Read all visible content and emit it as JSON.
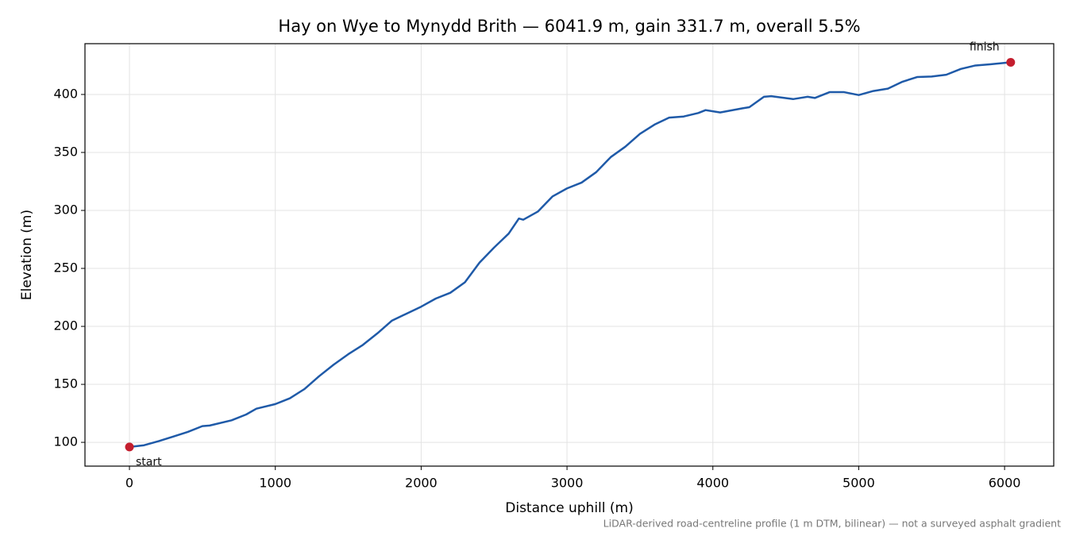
{
  "chart_data": {
    "type": "line",
    "title": "Hay on Wye to Mynydd Brith — 6041.9 m, gain 331.7 m, overall 5.5%",
    "xlabel": "Distance uphill (m)",
    "ylabel": "Elevation (m)",
    "note": "LiDAR-derived road-centreline profile (1 m DTM, bilinear) — not a surveyed asphalt gradient",
    "annotations": [
      "start",
      "finish"
    ],
    "color": "#1f5aa8",
    "marker_color": "#c41e2e",
    "grid": true,
    "x": [
      0,
      100,
      200,
      300,
      400,
      500,
      550,
      700,
      800,
      870,
      1000,
      1100,
      1200,
      1300,
      1400,
      1500,
      1600,
      1700,
      1800,
      1900,
      2000,
      2100,
      2200,
      2300,
      2400,
      2500,
      2600,
      2670,
      2700,
      2800,
      2900,
      3000,
      3100,
      3200,
      3300,
      3400,
      3500,
      3600,
      3700,
      3800,
      3900,
      3950,
      4050,
      4200,
      4250,
      4350,
      4400,
      4550,
      4650,
      4700,
      4800,
      4900,
      5000,
      5100,
      5200,
      5300,
      5400,
      5500,
      5600,
      5700,
      5800,
      5900,
      6041.9
    ],
    "values": [
      96,
      97.5,
      101,
      105,
      109,
      114,
      114.5,
      119,
      124,
      129,
      133,
      138,
      146,
      157,
      167,
      176,
      184,
      194,
      205,
      211,
      217,
      224,
      229,
      238,
      255,
      268,
      280,
      293,
      292,
      299,
      312,
      319,
      324,
      333,
      346,
      355,
      366,
      374,
      380,
      381,
      384,
      386.5,
      384.5,
      388,
      389,
      398,
      398.5,
      396,
      398,
      397,
      402,
      402,
      399.5,
      403,
      405,
      411,
      415,
      415.5,
      417,
      422,
      425,
      426,
      427.7
    ],
    "xlim": [
      -305,
      6337
    ],
    "ylim": [
      79.5,
      443.8
    ],
    "xticks": [
      0,
      1000,
      2000,
      3000,
      4000,
      5000,
      6000
    ],
    "yticks": [
      100,
      150,
      200,
      250,
      300,
      350,
      400
    ]
  }
}
